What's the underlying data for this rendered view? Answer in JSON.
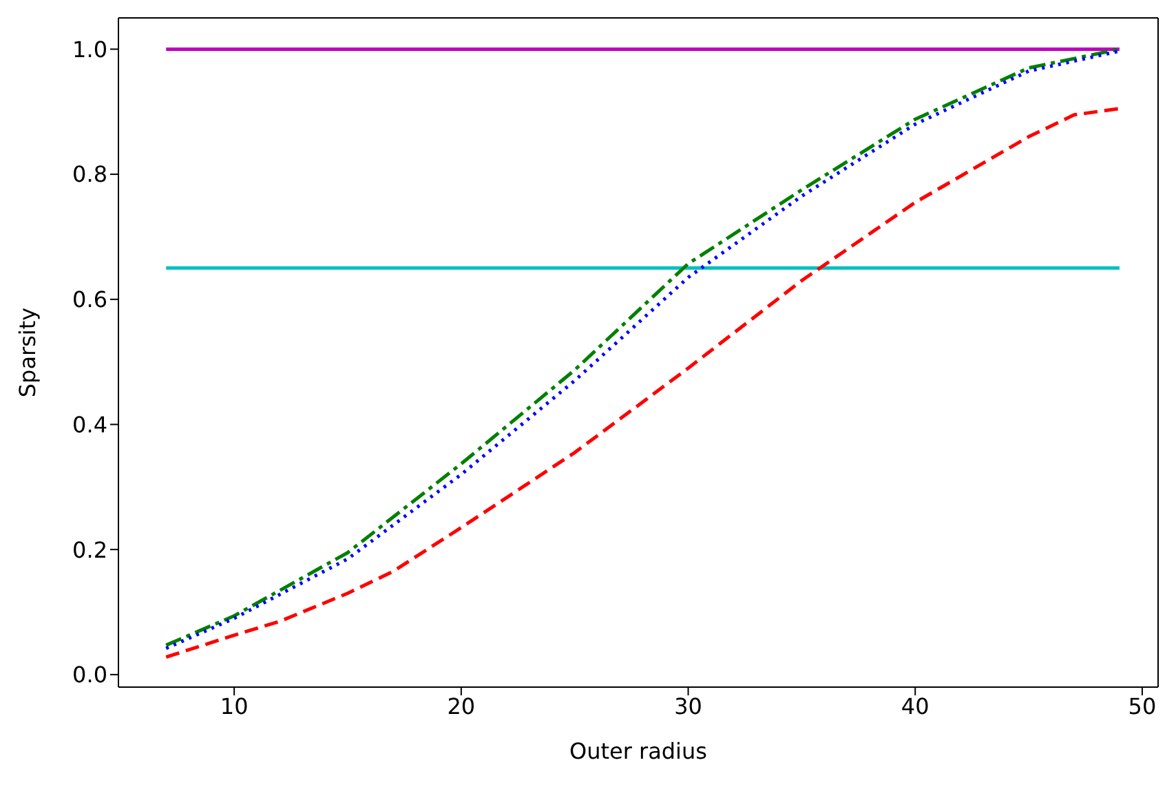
{
  "chart_data": {
    "type": "line",
    "xlabel": "Outer radius",
    "ylabel": "Sparsity",
    "xlim": [
      4.9,
      50.7
    ],
    "ylim": [
      -0.02,
      1.05
    ],
    "xticks": [
      10,
      20,
      30,
      40,
      50
    ],
    "yticks": [
      {
        "value": 0,
        "label": "0.0"
      },
      {
        "value": 0.2,
        "label": "0.2"
      },
      {
        "value": 0.4,
        "label": "0.4"
      },
      {
        "value": 0.6,
        "label": "0.6"
      },
      {
        "value": 0.8,
        "label": "0.8"
      },
      {
        "value": 1,
        "label": "1.0"
      }
    ],
    "grid": false,
    "marker": "none",
    "x": [
      7,
      10,
      12,
      15,
      17,
      20,
      25,
      30,
      35,
      40,
      45,
      47,
      49
    ],
    "series": [
      {
        "color": "#bf00bf",
        "line_style": "solid",
        "x": [
          7,
          49
        ],
        "values": [
          1.0,
          1.0
        ]
      },
      {
        "color": "#00bfbf",
        "line_style": "solid",
        "x": [
          7,
          49
        ],
        "values": [
          0.65,
          0.65
        ]
      },
      {
        "color": "#008000",
        "line_style": "dashdot",
        "x": [
          7,
          10,
          15,
          20,
          25,
          30,
          35,
          40,
          45,
          49
        ],
        "values": [
          0.047,
          0.094,
          0.195,
          0.337,
          0.487,
          0.657,
          0.775,
          0.888,
          0.97,
          1.0
        ]
      },
      {
        "color": "#0000ff",
        "line_style": "dotted",
        "x": [
          7,
          10,
          15,
          20,
          25,
          30,
          35,
          40,
          45,
          49
        ],
        "values": [
          0.042,
          0.09,
          0.185,
          0.32,
          0.47,
          0.635,
          0.765,
          0.88,
          0.965,
          0.997
        ]
      },
      {
        "color": "#ff0000",
        "line_style": "dashed",
        "values": [
          0.028,
          0.063,
          0.085,
          0.13,
          0.165,
          0.235,
          0.355,
          0.49,
          0.63,
          0.755,
          0.86,
          0.895,
          0.905
        ]
      }
    ]
  }
}
